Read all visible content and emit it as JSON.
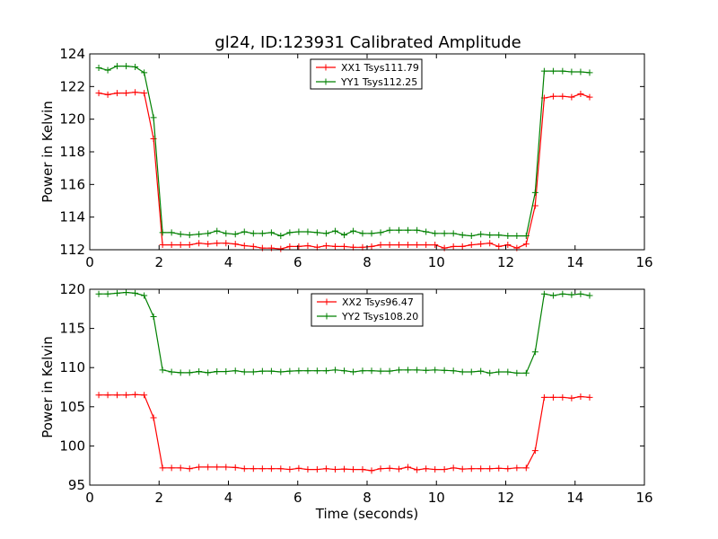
{
  "title": "gl24, ID:123931 Calibrated Amplitude",
  "colors": {
    "xx": "#ff0000",
    "yy": "#008000"
  },
  "chart_data": [
    {
      "type": "line",
      "xlabel": "",
      "ylabel": "Power in Kelvin",
      "xlim": [
        0,
        16
      ],
      "ylim": [
        112,
        124
      ],
      "xticks": [
        0,
        2,
        4,
        6,
        8,
        10,
        12,
        14,
        16
      ],
      "yticks": [
        112,
        114,
        116,
        118,
        120,
        122,
        124
      ],
      "legend_position": "top-center",
      "grid": false,
      "marker": "+",
      "x": [
        0.26,
        0.52,
        0.79,
        1.05,
        1.31,
        1.57,
        1.84,
        2.1,
        2.36,
        2.62,
        2.88,
        3.15,
        3.41,
        3.67,
        3.93,
        4.2,
        4.46,
        4.72,
        4.98,
        5.24,
        5.51,
        5.77,
        6.03,
        6.29,
        6.56,
        6.82,
        7.08,
        7.34,
        7.6,
        7.87,
        8.13,
        8.39,
        8.65,
        8.92,
        9.18,
        9.44,
        9.7,
        9.96,
        10.23,
        10.49,
        10.75,
        11.01,
        11.28,
        11.54,
        11.8,
        12.06,
        12.32,
        12.59,
        12.85,
        13.11,
        13.37,
        13.64,
        13.9,
        14.16,
        14.42
      ],
      "series": [
        {
          "name": "XX1 Tsys111.79",
          "color": "#ff0000",
          "values": [
            121.6,
            121.5,
            121.6,
            121.6,
            121.65,
            121.6,
            118.8,
            112.3,
            112.3,
            112.3,
            112.3,
            112.4,
            112.35,
            112.4,
            112.4,
            112.35,
            112.25,
            112.2,
            112.1,
            112.1,
            112.05,
            112.2,
            112.2,
            112.25,
            112.15,
            112.25,
            112.2,
            112.2,
            112.15,
            112.15,
            112.2,
            112.3,
            112.3,
            112.3,
            112.3,
            112.3,
            112.3,
            112.3,
            112.1,
            112.2,
            112.2,
            112.3,
            112.35,
            112.4,
            112.2,
            112.3,
            112.1,
            112.35,
            114.7,
            121.3,
            121.4,
            121.4,
            121.35,
            121.55,
            121.35
          ]
        },
        {
          "name": "YY1 Tsys112.25",
          "color": "#008000",
          "values": [
            123.15,
            123.0,
            123.25,
            123.25,
            123.2,
            122.85,
            120.1,
            113.05,
            113.05,
            112.95,
            112.9,
            112.95,
            113.0,
            113.15,
            113.0,
            112.95,
            113.1,
            113.0,
            113.0,
            113.05,
            112.85,
            113.05,
            113.1,
            113.1,
            113.05,
            113.0,
            113.15,
            112.9,
            113.15,
            113.0,
            113.0,
            113.05,
            113.2,
            113.2,
            113.2,
            113.2,
            113.1,
            113.0,
            113.0,
            113.0,
            112.9,
            112.85,
            112.95,
            112.9,
            112.9,
            112.85,
            112.85,
            112.85,
            115.5,
            122.95,
            122.95,
            122.95,
            122.9,
            122.9,
            122.85
          ]
        }
      ]
    },
    {
      "type": "line",
      "xlabel": "Time (seconds)",
      "ylabel": "Power in Kelvin",
      "xlim": [
        0,
        16
      ],
      "ylim": [
        95,
        120
      ],
      "xticks": [
        0,
        2,
        4,
        6,
        8,
        10,
        12,
        14,
        16
      ],
      "yticks": [
        95,
        100,
        105,
        110,
        115,
        120
      ],
      "legend_position": "top-center",
      "grid": false,
      "marker": "+",
      "x": [
        0.26,
        0.52,
        0.79,
        1.05,
        1.31,
        1.57,
        1.84,
        2.1,
        2.36,
        2.62,
        2.88,
        3.15,
        3.41,
        3.67,
        3.93,
        4.2,
        4.46,
        4.72,
        4.98,
        5.24,
        5.51,
        5.77,
        6.03,
        6.29,
        6.56,
        6.82,
        7.08,
        7.34,
        7.6,
        7.87,
        8.13,
        8.39,
        8.65,
        8.92,
        9.18,
        9.44,
        9.7,
        9.96,
        10.23,
        10.49,
        10.75,
        11.01,
        11.28,
        11.54,
        11.8,
        12.06,
        12.32,
        12.59,
        12.85,
        13.11,
        13.37,
        13.64,
        13.9,
        14.16,
        14.42
      ],
      "series": [
        {
          "name": "XX2 Tsys96.47",
          "color": "#ff0000",
          "values": [
            106.5,
            106.5,
            106.5,
            106.5,
            106.55,
            106.5,
            103.6,
            97.2,
            97.2,
            97.2,
            97.1,
            97.3,
            97.3,
            97.3,
            97.3,
            97.25,
            97.1,
            97.1,
            97.1,
            97.1,
            97.1,
            97.0,
            97.15,
            97.0,
            97.0,
            97.1,
            97.0,
            97.05,
            97.0,
            97.0,
            96.85,
            97.1,
            97.15,
            97.05,
            97.3,
            96.95,
            97.1,
            97.0,
            97.0,
            97.2,
            97.05,
            97.1,
            97.1,
            97.1,
            97.15,
            97.1,
            97.2,
            97.2,
            99.4,
            106.2,
            106.2,
            106.2,
            106.1,
            106.3,
            106.2
          ]
        },
        {
          "name": "YY2 Tsys108.20",
          "color": "#008000",
          "values": [
            119.4,
            119.4,
            119.5,
            119.6,
            119.5,
            119.2,
            116.5,
            109.7,
            109.45,
            109.35,
            109.35,
            109.5,
            109.35,
            109.5,
            109.5,
            109.6,
            109.45,
            109.45,
            109.55,
            109.55,
            109.45,
            109.55,
            109.6,
            109.6,
            109.6,
            109.6,
            109.7,
            109.6,
            109.45,
            109.6,
            109.6,
            109.55,
            109.55,
            109.7,
            109.7,
            109.7,
            109.65,
            109.7,
            109.65,
            109.6,
            109.45,
            109.45,
            109.55,
            109.3,
            109.45,
            109.45,
            109.3,
            109.3,
            112.0,
            119.4,
            119.2,
            119.4,
            119.3,
            119.4,
            119.2
          ]
        }
      ]
    }
  ]
}
